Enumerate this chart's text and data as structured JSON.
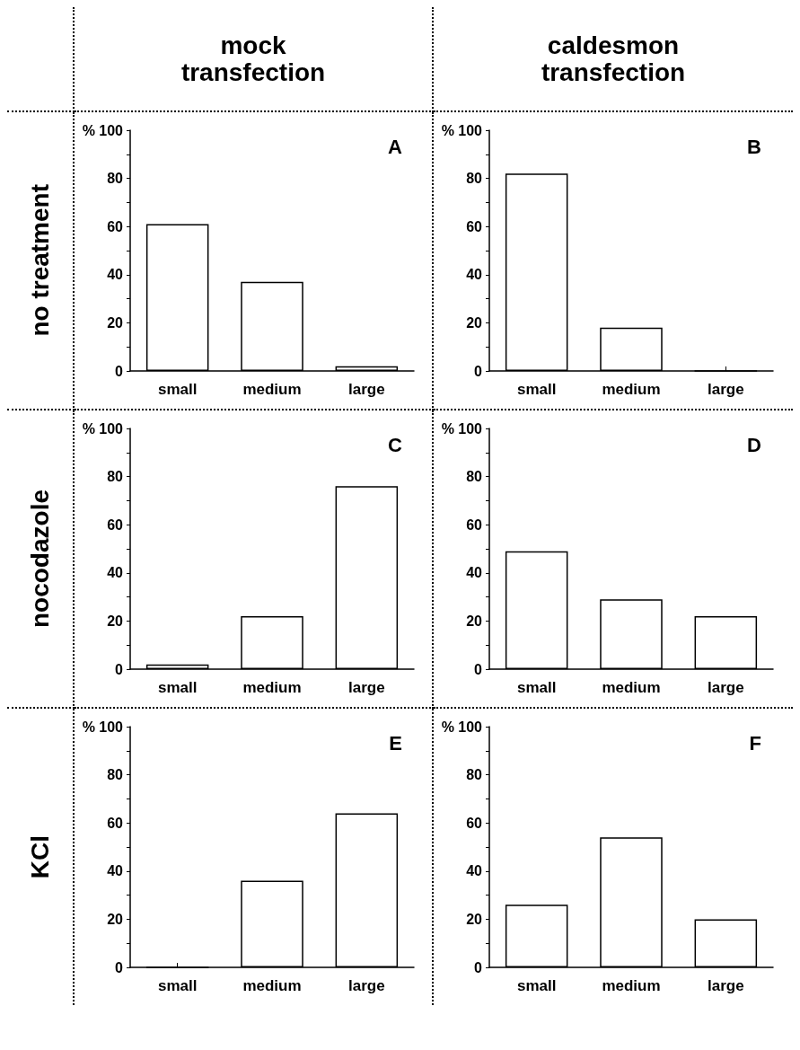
{
  "chart_data": [
    {
      "type": "bar",
      "title": "A",
      "annotations": [
        "mock transfection"
      ],
      "ylabel": "no treatment",
      "categories": [
        "small",
        "medium",
        "large"
      ],
      "values": [
        61,
        37,
        2
      ],
      "color": "#ffffff",
      "ylim": [
        0,
        100
      ],
      "yticks": [
        0,
        {
          "value": 10,
          "label": null
        },
        20,
        {
          "value": 30,
          "label": null
        },
        40,
        {
          "value": 50,
          "label": null
        },
        60,
        {
          "value": 70,
          "label": null
        },
        80,
        {
          "value": 90,
          "label": null
        },
        {
          "value": 100,
          "label": "% 100"
        }
      ]
    },
    {
      "type": "bar",
      "title": "B",
      "annotations": [
        "caldesmon transfection"
      ],
      "categories": [
        "small",
        "medium",
        "large"
      ],
      "values": [
        82,
        18,
        0
      ],
      "color": "#ffffff",
      "ylim": [
        0,
        100
      ],
      "yticks": [
        0,
        {
          "value": 10,
          "label": null
        },
        20,
        {
          "value": 30,
          "label": null
        },
        40,
        {
          "value": 50,
          "label": null
        },
        60,
        {
          "value": 70,
          "label": null
        },
        80,
        {
          "value": 90,
          "label": null
        },
        {
          "value": 100,
          "label": "% 100"
        }
      ]
    },
    {
      "type": "bar",
      "title": "C",
      "ylabel": "nocodazole",
      "categories": [
        "small",
        "medium",
        "large"
      ],
      "values": [
        2,
        22,
        76
      ],
      "color": "#ffffff",
      "ylim": [
        0,
        100
      ],
      "yticks": [
        0,
        {
          "value": 10,
          "label": null
        },
        20,
        {
          "value": 30,
          "label": null
        },
        40,
        {
          "value": 50,
          "label": null
        },
        60,
        {
          "value": 70,
          "label": null
        },
        80,
        {
          "value": 90,
          "label": null
        },
        {
          "value": 100,
          "label": "% 100"
        }
      ]
    },
    {
      "type": "bar",
      "title": "D",
      "categories": [
        "small",
        "medium",
        "large"
      ],
      "values": [
        49,
        29,
        22
      ],
      "color": "#ffffff",
      "ylim": [
        0,
        100
      ],
      "yticks": [
        0,
        {
          "value": 10,
          "label": null
        },
        20,
        {
          "value": 30,
          "label": null
        },
        40,
        {
          "value": 50,
          "label": null
        },
        60,
        {
          "value": 70,
          "label": null
        },
        80,
        {
          "value": 90,
          "label": null
        },
        {
          "value": 100,
          "label": "% 100"
        }
      ]
    },
    {
      "type": "bar",
      "title": "E",
      "ylabel": "KCl",
      "categories": [
        "small",
        "medium",
        "large"
      ],
      "values": [
        0,
        36,
        64
      ],
      "color": "#ffffff",
      "ylim": [
        0,
        100
      ],
      "yticks": [
        0,
        {
          "value": 10,
          "label": null
        },
        20,
        {
          "value": 30,
          "label": null
        },
        40,
        {
          "value": 50,
          "label": null
        },
        60,
        {
          "value": 70,
          "label": null
        },
        80,
        {
          "value": 90,
          "label": null
        },
        {
          "value": 100,
          "label": "% 100"
        }
      ]
    },
    {
      "type": "bar",
      "title": "F",
      "categories": [
        "small",
        "medium",
        "large"
      ],
      "values": [
        26,
        54,
        20
      ],
      "color": "#ffffff",
      "ylim": [
        0,
        100
      ],
      "yticks": [
        0,
        {
          "value": 10,
          "label": null
        },
        20,
        {
          "value": 30,
          "label": null
        },
        40,
        {
          "value": 50,
          "label": null
        },
        60,
        {
          "value": 70,
          "label": null
        },
        80,
        {
          "value": 90,
          "label": null
        },
        {
          "value": 100,
          "label": "% 100"
        }
      ]
    }
  ]
}
